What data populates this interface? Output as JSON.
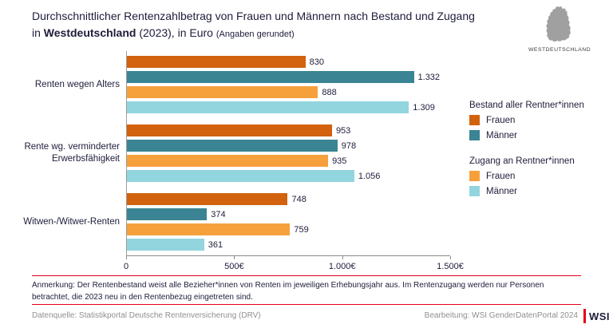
{
  "header": {
    "title_line1": "Durchschnittlicher Rentenzahlbetrag von Frauen und Männern nach Bestand und Zugang",
    "title_line2_prefix": "in ",
    "title_region": "Westdeutschland",
    "title_line2_suffix": " (2023), in Euro ",
    "title_note": "(Angaben gerundet)",
    "map_label": "WESTDEUTSCHLAND"
  },
  "chart_data": {
    "type": "bar",
    "orientation": "horizontal",
    "title": "Durchschnittlicher Rentenzahlbetrag von Frauen und Männern nach Bestand und Zugang in Westdeutschland (2023), in Euro",
    "categories": [
      "Renten wegen Alters",
      "Rente wg. verminderter Erwerbsfähigkeit",
      "Witwen-/Witwer-Renten"
    ],
    "series": [
      {
        "name": "Bestand Frauen",
        "key": "bestand-frauen",
        "color": "#d2620e",
        "values": [
          830,
          953,
          748
        ],
        "labels": [
          "830",
          "953",
          "748"
        ]
      },
      {
        "name": "Bestand Männer",
        "key": "bestand-maenner",
        "color": "#3a8493",
        "values": [
          1332,
          978,
          374
        ],
        "labels": [
          "1.332",
          "978",
          "374"
        ]
      },
      {
        "name": "Zugang Frauen",
        "key": "zugang-frauen",
        "color": "#f6a03c",
        "values": [
          888,
          935,
          759
        ],
        "labels": [
          "888",
          "935",
          "759"
        ]
      },
      {
        "name": "Zugang Männer",
        "key": "zugang-maenner",
        "color": "#92d5df",
        "values": [
          1309,
          1056,
          361
        ],
        "labels": [
          "1.309",
          "1.056",
          "361"
        ]
      }
    ],
    "xlim": [
      0,
      1500
    ],
    "x_ticks": [
      {
        "value": 0,
        "label": "0"
      },
      {
        "value": 500,
        "label": "500€"
      },
      {
        "value": 1000,
        "label": "1.000€"
      },
      {
        "value": 1500,
        "label": "1.500€"
      }
    ],
    "grid": false,
    "legend_position": "right"
  },
  "legend": {
    "groups": [
      {
        "title": "Bestand aller Rentner*innen",
        "items": [
          {
            "label": "Frauen",
            "color": "#d2620e"
          },
          {
            "label": "Männer",
            "color": "#3a8493"
          }
        ]
      },
      {
        "title": "Zugang an Rentner*innen",
        "items": [
          {
            "label": "Frauen",
            "color": "#f6a03c"
          },
          {
            "label": "Männer",
            "color": "#92d5df"
          }
        ]
      }
    ]
  },
  "note": "Anmerkung: Der Rentenbestand weist alle Bezieher*innen von Renten im jeweiligen Erhebungsjahr aus. Im Rentenzugang werden nur Personen betrachtet, die 2023 neu in den Rentenbezug eingetreten sind.",
  "footer": {
    "source": "Datenquelle: Statistikportal Deutsche Rentenversicherung (DRV)",
    "editing": "Bearbeitung: WSI GenderDatenPortal 2024",
    "logo": "WSI"
  },
  "colors": {
    "accent_red": "#e2001a",
    "text_dark": "#1d1d3b",
    "text_gray": "#8f8f8f",
    "map_gray": "#a0a0a0"
  }
}
